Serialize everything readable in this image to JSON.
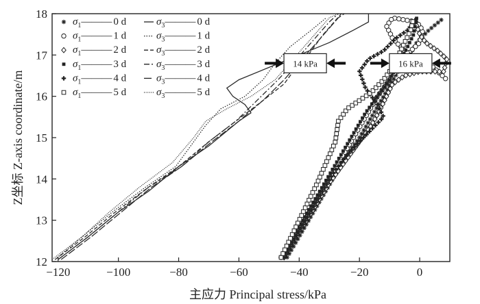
{
  "chart_data": {
    "type": "line",
    "xlabel": "主应力 Principal stress/kPa",
    "ylabel": "Z坐标 Z-axis coordinate/m",
    "xlim": [
      -122,
      10
    ],
    "ylim": [
      12,
      18
    ],
    "xticks": [
      -120,
      -100,
      -80,
      -60,
      -40,
      -20,
      0
    ],
    "yticks": [
      12,
      13,
      14,
      15,
      16,
      17,
      18
    ],
    "grid": false,
    "legend_position": "top-left",
    "legend": [
      {
        "sigma": "σ",
        "sub": "1",
        "dash": "———",
        "day": "0 d",
        "marker": "asterisk"
      },
      {
        "sigma": "σ",
        "sub": "1",
        "dash": "———",
        "day": "1 d",
        "marker": "circle"
      },
      {
        "sigma": "σ",
        "sub": "1",
        "dash": "———",
        "day": "2 d",
        "marker": "diamond"
      },
      {
        "sigma": "σ",
        "sub": "1",
        "dash": "———",
        "day": "3 d",
        "marker": "square-filled"
      },
      {
        "sigma": "σ",
        "sub": "1",
        "dash": "———",
        "day": "4 d",
        "marker": "plus"
      },
      {
        "sigma": "σ",
        "sub": "1",
        "dash": "———",
        "day": "5 d",
        "marker": "square-open"
      },
      {
        "sigma": "σ",
        "sub": "3",
        "dash": "———",
        "day": "0 d",
        "linestyle": "solid"
      },
      {
        "sigma": "σ",
        "sub": "3",
        "dash": "———",
        "day": "1 d",
        "linestyle": "dotted"
      },
      {
        "sigma": "σ",
        "sub": "3",
        "dash": "———",
        "day": "2 d",
        "linestyle": "dashed"
      },
      {
        "sigma": "σ",
        "sub": "3",
        "dash": "———",
        "day": "3 d",
        "linestyle": "dashdot"
      },
      {
        "sigma": "σ",
        "sub": "3",
        "dash": "———",
        "day": "4 d",
        "linestyle": "longdash"
      },
      {
        "sigma": "σ",
        "sub": "3",
        "dash": "———",
        "day": "5 d",
        "linestyle": "fine-dotted"
      }
    ],
    "annotations": [
      {
        "text": "14 kPa",
        "x": -38,
        "y": 16.8
      },
      {
        "text": "16 kPa",
        "x": -3,
        "y": 16.8
      }
    ],
    "series": [
      {
        "group": "sigma1",
        "day": "0 d",
        "marker": "asterisk",
        "points": [
          [
            -44,
            12.1
          ],
          [
            -40,
            12.6
          ],
          [
            -36,
            13.1
          ],
          [
            -32,
            13.6
          ],
          [
            -28,
            14.1
          ],
          [
            -24,
            14.6
          ],
          [
            -20,
            15.0
          ],
          [
            -16,
            15.5
          ],
          [
            -12,
            16.0
          ],
          [
            -8,
            16.5
          ],
          [
            -4,
            16.9
          ],
          [
            -1,
            17.3
          ],
          [
            3,
            17.6
          ],
          [
            8,
            17.9
          ]
        ]
      },
      {
        "group": "sigma1",
        "day": "1 d",
        "marker": "circle",
        "points": [
          [
            -46,
            12.1
          ],
          [
            -41,
            12.7
          ],
          [
            -36,
            13.3
          ],
          [
            -31,
            13.9
          ],
          [
            -26,
            14.5
          ],
          [
            -22,
            15.0
          ],
          [
            -18,
            15.5
          ],
          [
            -14,
            16.0
          ],
          [
            -10,
            16.4
          ],
          [
            -6,
            16.8
          ],
          [
            -3,
            17.1
          ],
          [
            0,
            17.3
          ],
          [
            1,
            17.6
          ],
          [
            -1,
            17.8
          ],
          [
            -9,
            17.9
          ],
          [
            -11,
            17.7
          ],
          [
            -9,
            17.4
          ],
          [
            -5,
            17.1
          ],
          [
            -1,
            16.9
          ],
          [
            3,
            16.8
          ],
          [
            6,
            16.6
          ],
          [
            9,
            16.4
          ]
        ]
      },
      {
        "group": "sigma1",
        "day": "2 d",
        "marker": "diamond",
        "points": [
          [
            -45,
            12.1
          ],
          [
            -40,
            12.7
          ],
          [
            -35,
            13.3
          ],
          [
            -30,
            13.9
          ],
          [
            -25,
            14.4
          ],
          [
            -20,
            14.9
          ],
          [
            -16,
            15.3
          ],
          [
            -13,
            15.7
          ],
          [
            -11,
            16.0
          ],
          [
            -9,
            16.3
          ],
          [
            -5,
            16.5
          ],
          [
            0,
            16.6
          ],
          [
            4,
            16.6
          ],
          [
            8,
            16.6
          ],
          [
            9,
            16.9
          ],
          [
            6,
            17.1
          ],
          [
            2,
            17.3
          ],
          [
            0,
            17.5
          ],
          [
            -2,
            17.9
          ]
        ]
      },
      {
        "group": "sigma1",
        "day": "3 d",
        "marker": "square-filled",
        "points": [
          [
            -46,
            12.1
          ],
          [
            -42,
            12.6
          ],
          [
            -38,
            13.1
          ],
          [
            -34,
            13.6
          ],
          [
            -30,
            14.1
          ],
          [
            -26,
            14.6
          ],
          [
            -22,
            15.1
          ],
          [
            -18,
            15.6
          ],
          [
            -14,
            16.0
          ],
          [
            -10,
            16.4
          ],
          [
            -7,
            16.8
          ],
          [
            -4,
            17.2
          ],
          [
            -2,
            17.5
          ],
          [
            -1,
            17.9
          ]
        ]
      },
      {
        "group": "sigma1",
        "day": "4 d",
        "marker": "plus",
        "points": [
          [
            -45,
            12.1
          ],
          [
            -41,
            12.6
          ],
          [
            -37,
            13.1
          ],
          [
            -33,
            13.6
          ],
          [
            -29,
            14.1
          ],
          [
            -25,
            14.5
          ],
          [
            -20,
            14.9
          ],
          [
            -16,
            15.2
          ],
          [
            -12,
            15.5
          ],
          [
            -14,
            15.8
          ],
          [
            -18,
            16.2
          ],
          [
            -20,
            16.6
          ],
          [
            -17,
            16.9
          ],
          [
            -12,
            17.1
          ],
          [
            -8,
            17.4
          ],
          [
            -4,
            17.6
          ],
          [
            -1,
            17.9
          ]
        ]
      },
      {
        "group": "sigma1",
        "day": "5 d",
        "marker": "square-open",
        "points": [
          [
            -46,
            12.1
          ],
          [
            -42,
            12.7
          ],
          [
            -38,
            13.3
          ],
          [
            -34,
            13.9
          ],
          [
            -31,
            14.4
          ],
          [
            -28,
            14.9
          ],
          [
            -27,
            15.4
          ],
          [
            -24,
            15.7
          ],
          [
            -20,
            15.9
          ],
          [
            -16,
            16.1
          ],
          [
            -12,
            16.4
          ],
          [
            -9,
            16.7
          ],
          [
            -7,
            17.0
          ],
          [
            -5,
            17.3
          ],
          [
            -3,
            17.6
          ],
          [
            -2,
            17.9
          ]
        ]
      },
      {
        "group": "sigma3",
        "day": "0 d",
        "linestyle": "solid",
        "points": [
          [
            -120,
            12.05
          ],
          [
            -110,
            12.6
          ],
          [
            -100,
            13.2
          ],
          [
            -90,
            13.7
          ],
          [
            -80,
            14.3
          ],
          [
            -70,
            14.8
          ],
          [
            -60,
            15.4
          ],
          [
            -56,
            15.6
          ],
          [
            -58,
            15.8
          ],
          [
            -62,
            16.0
          ],
          [
            -64,
            16.2
          ],
          [
            -60,
            16.4
          ],
          [
            -50,
            16.7
          ],
          [
            -40,
            17.0
          ],
          [
            -30,
            17.3
          ],
          [
            -22,
            17.6
          ],
          [
            -17,
            17.8
          ],
          [
            -17,
            18.0
          ]
        ]
      },
      {
        "group": "sigma3",
        "day": "1 d",
        "linestyle": "dotted",
        "points": [
          [
            -121,
            12.05
          ],
          [
            -112,
            12.6
          ],
          [
            -102,
            13.2
          ],
          [
            -91,
            13.8
          ],
          [
            -81,
            14.3
          ],
          [
            -77,
            14.7
          ],
          [
            -74,
            15.0
          ],
          [
            -71,
            15.3
          ],
          [
            -66,
            15.7
          ],
          [
            -58,
            16.0
          ],
          [
            -52,
            16.4
          ],
          [
            -48,
            16.8
          ],
          [
            -43,
            17.2
          ],
          [
            -36,
            17.6
          ],
          [
            -31,
            17.9
          ]
        ]
      },
      {
        "group": "sigma3",
        "day": "2 d",
        "linestyle": "dashed",
        "points": [
          [
            -121,
            12.05
          ],
          [
            -111,
            12.6
          ],
          [
            -101,
            13.2
          ],
          [
            -90,
            13.8
          ],
          [
            -80,
            14.3
          ],
          [
            -70,
            14.9
          ],
          [
            -61,
            15.4
          ],
          [
            -52,
            15.9
          ],
          [
            -45,
            16.3
          ],
          [
            -42,
            16.6
          ],
          [
            -37,
            17.0
          ],
          [
            -32,
            17.5
          ],
          [
            -26,
            18.0
          ]
        ]
      },
      {
        "group": "sigma3",
        "day": "3 d",
        "linestyle": "dashdot",
        "points": [
          [
            -120,
            12.05
          ],
          [
            -110,
            12.6
          ],
          [
            -100,
            13.2
          ],
          [
            -90,
            13.8
          ],
          [
            -79,
            14.3
          ],
          [
            -70,
            14.9
          ],
          [
            -61,
            15.4
          ],
          [
            -54,
            15.9
          ],
          [
            -47,
            16.4
          ],
          [
            -42,
            16.8
          ],
          [
            -36,
            17.3
          ],
          [
            -30,
            17.8
          ],
          [
            -27,
            18.0
          ]
        ]
      },
      {
        "group": "sigma3",
        "day": "4 d",
        "linestyle": "longdash",
        "points": [
          [
            -119,
            12.05
          ],
          [
            -109,
            12.6
          ],
          [
            -99,
            13.2
          ],
          [
            -89,
            13.8
          ],
          [
            -79,
            14.3
          ],
          [
            -69,
            14.9
          ],
          [
            -60,
            15.4
          ],
          [
            -52,
            15.9
          ],
          [
            -45,
            16.4
          ],
          [
            -39,
            16.9
          ],
          [
            -33,
            17.4
          ],
          [
            -27,
            17.9
          ],
          [
            -25,
            18.0
          ]
        ]
      },
      {
        "group": "sigma3",
        "day": "5 d",
        "linestyle": "fine-dotted",
        "points": [
          [
            -122,
            12.05
          ],
          [
            -112,
            12.6
          ],
          [
            -103,
            13.2
          ],
          [
            -93,
            13.8
          ],
          [
            -82,
            14.4
          ],
          [
            -75,
            15.0
          ],
          [
            -71,
            15.4
          ],
          [
            -64,
            15.7
          ],
          [
            -56,
            16.0
          ],
          [
            -48,
            16.4
          ],
          [
            -42,
            16.9
          ],
          [
            -36,
            17.4
          ],
          [
            -30,
            17.9
          ],
          [
            -27,
            18.0
          ]
        ]
      }
    ]
  }
}
